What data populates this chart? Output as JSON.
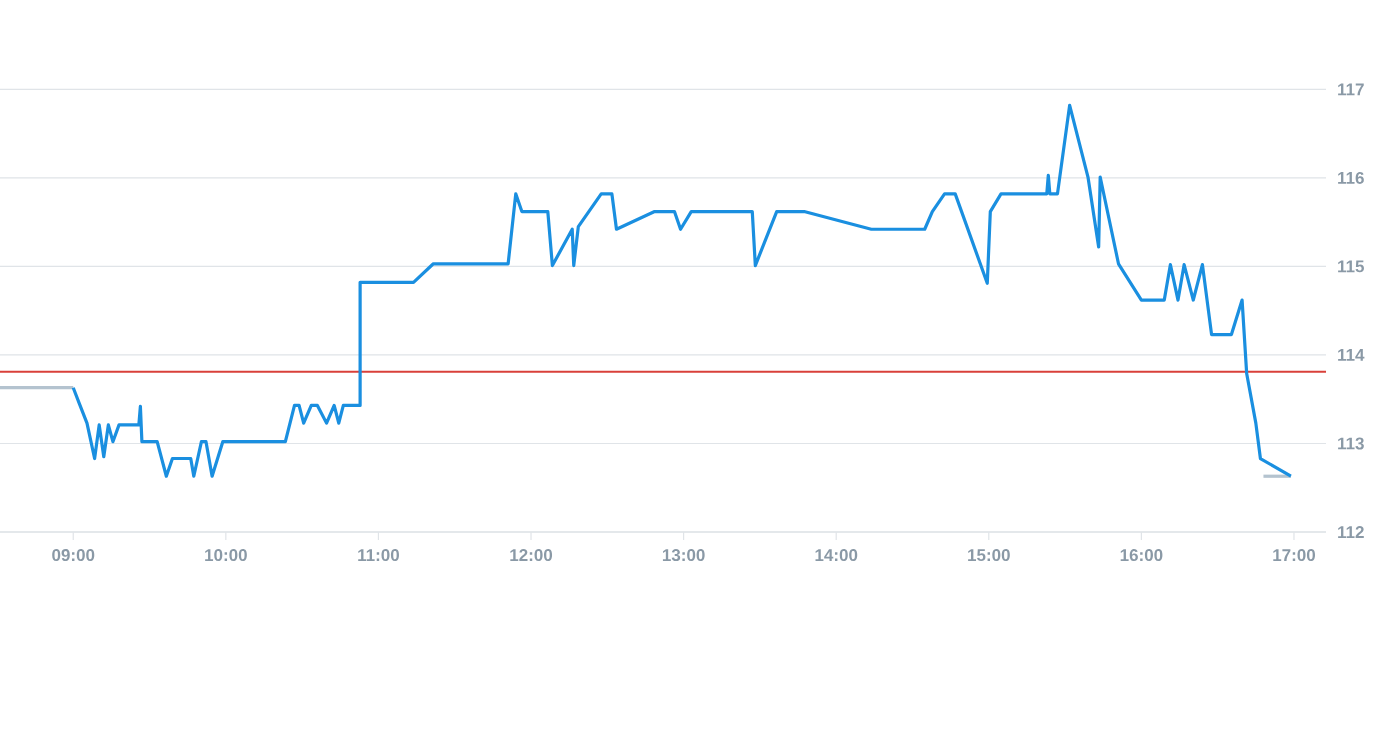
{
  "chart_data": {
    "type": "line",
    "xlim": [
      8.52,
      17.21
    ],
    "ylim": [
      112,
      117
    ],
    "xticks": [
      {
        "value": 9,
        "label": "09:00"
      },
      {
        "value": 10,
        "label": "10:00"
      },
      {
        "value": 11,
        "label": "11:00"
      },
      {
        "value": 12,
        "label": "12:00"
      },
      {
        "value": 13,
        "label": "13:00"
      },
      {
        "value": 14,
        "label": "14:00"
      },
      {
        "value": 15,
        "label": "15:00"
      },
      {
        "value": 16,
        "label": "16:00"
      },
      {
        "value": 17,
        "label": "17:00"
      }
    ],
    "yticks": [
      112,
      113,
      114,
      115,
      116,
      117
    ],
    "grid": "y",
    "marker": "none",
    "line_style": "solid",
    "ref_lines": [
      {
        "axis": "y",
        "value": 113.81,
        "color": "#d9403a"
      }
    ],
    "series": [
      {
        "color": "#b4c3cf",
        "x": [
          8.52,
          9.0
        ],
        "values": [
          113.63,
          113.63
        ]
      },
      {
        "color": "#b4c3cf",
        "x": [
          16.8,
          16.98
        ],
        "values": [
          112.63,
          112.63
        ]
      },
      {
        "color": "#1a8fe0",
        "x": [
          9.0,
          9.04,
          9.09,
          9.14,
          9.17,
          9.2,
          9.23,
          9.26,
          9.3,
          9.43,
          9.44,
          9.45,
          9.55,
          9.61,
          9.65,
          9.77,
          9.79,
          9.84,
          9.87,
          9.91,
          9.98,
          10.39,
          10.45,
          10.48,
          10.51,
          10.56,
          10.6,
          10.66,
          10.71,
          10.74,
          10.77,
          10.88,
          10.88,
          11.23,
          11.36,
          11.85,
          11.9,
          11.94,
          12.11,
          12.14,
          12.27,
          12.28,
          12.31,
          12.46,
          12.53,
          12.56,
          12.81,
          12.94,
          12.98,
          13.05,
          13.45,
          13.47,
          13.61,
          13.79,
          14.23,
          14.58,
          14.63,
          14.71,
          14.78,
          14.99,
          15.01,
          15.08,
          15.38,
          15.39,
          15.4,
          15.45,
          15.53,
          15.65,
          15.72,
          15.73,
          15.85,
          16.0,
          16.15,
          16.19,
          16.24,
          16.28,
          16.34,
          16.4,
          16.46,
          16.59,
          16.66,
          16.69,
          16.75,
          16.78,
          16.98
        ],
        "values": [
          113.63,
          113.45,
          113.23,
          112.83,
          113.21,
          112.85,
          113.21,
          113.02,
          113.21,
          113.21,
          113.42,
          113.02,
          113.02,
          112.63,
          112.83,
          112.83,
          112.63,
          113.02,
          113.02,
          112.63,
          113.02,
          113.02,
          113.43,
          113.43,
          113.23,
          113.43,
          113.43,
          113.23,
          113.43,
          113.23,
          113.43,
          113.43,
          114.82,
          114.82,
          115.03,
          115.03,
          115.82,
          115.62,
          115.62,
          115.01,
          115.42,
          115.01,
          115.45,
          115.82,
          115.82,
          115.42,
          115.62,
          115.62,
          115.42,
          115.62,
          115.62,
          115.01,
          115.62,
          115.62,
          115.42,
          115.42,
          115.62,
          115.82,
          115.82,
          114.81,
          115.62,
          115.82,
          115.82,
          116.03,
          115.82,
          115.82,
          116.82,
          116.01,
          115.22,
          116.01,
          115.03,
          114.62,
          114.62,
          115.02,
          114.62,
          115.02,
          114.62,
          115.02,
          114.23,
          114.23,
          114.62,
          113.79,
          113.23,
          112.83,
          112.63
        ]
      }
    ]
  }
}
